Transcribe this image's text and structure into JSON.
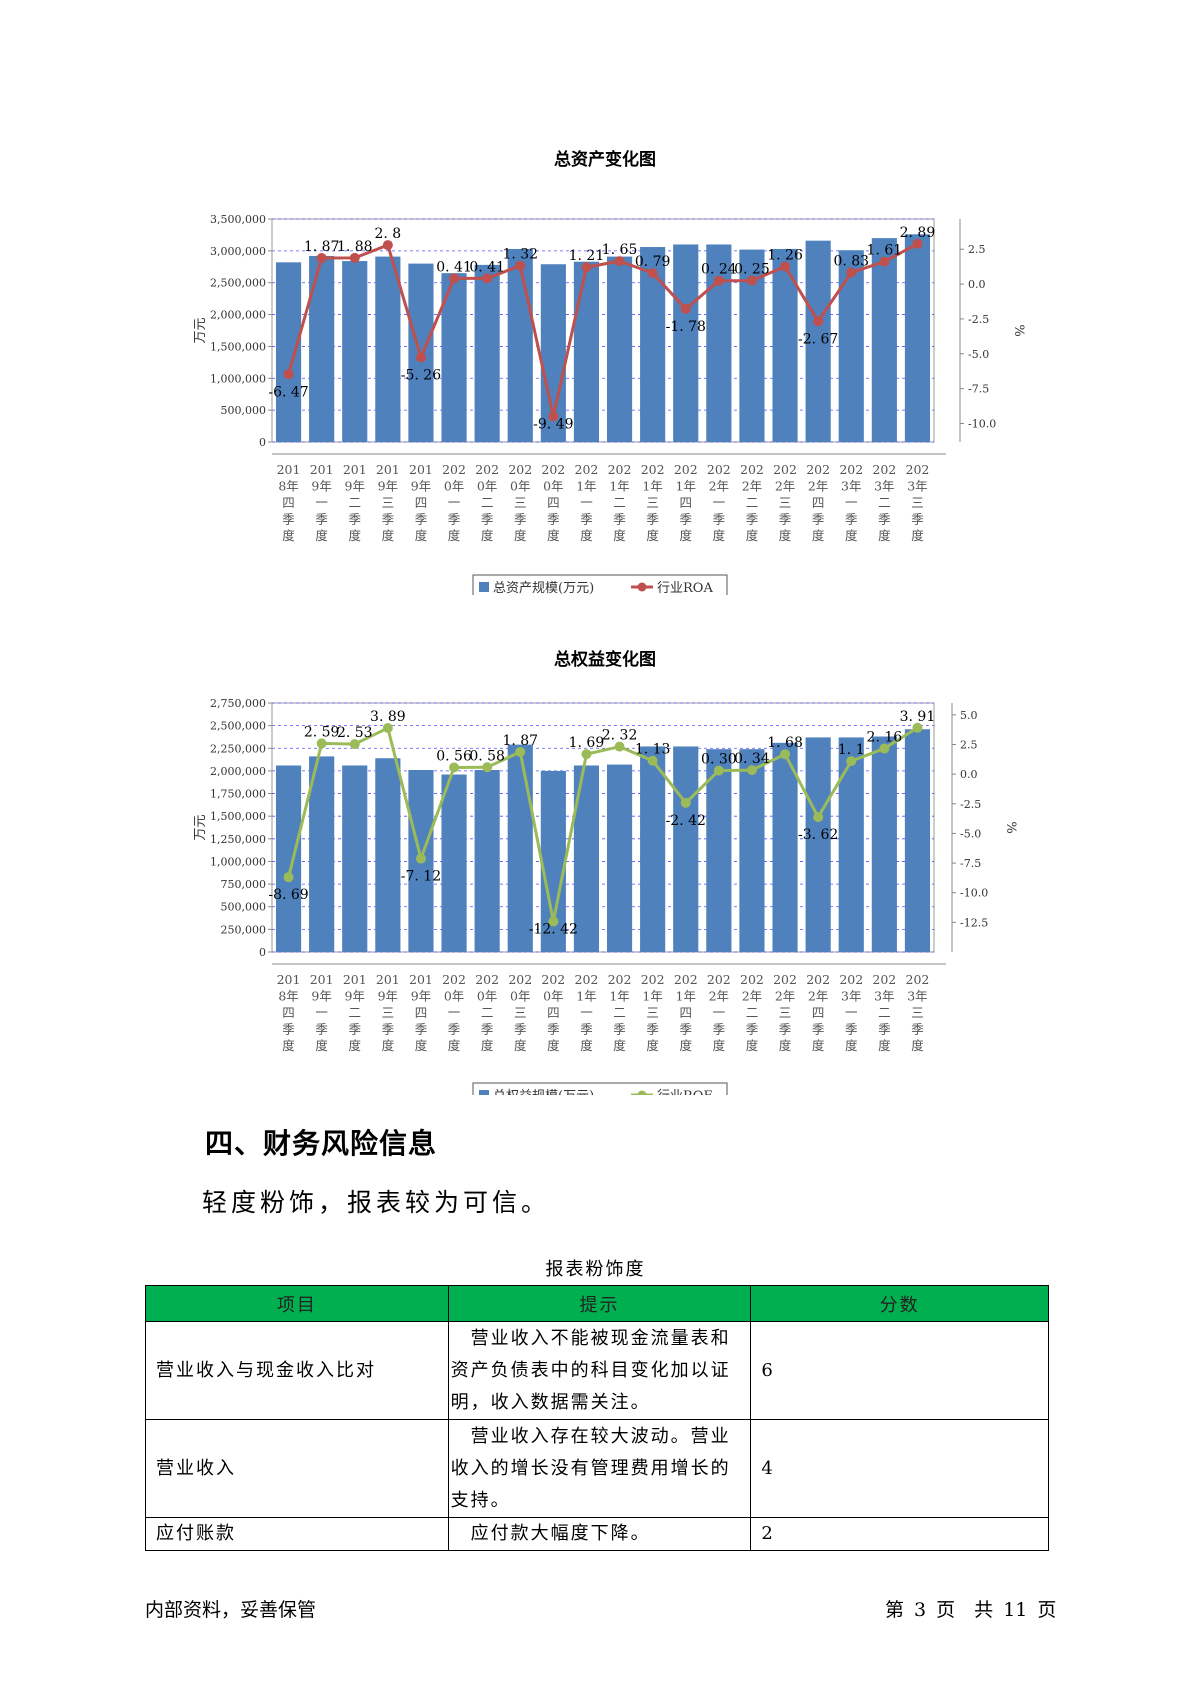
{
  "chart_data": [
    {
      "type": "bar+line",
      "title": "总资产变化图",
      "ylabel_left": "万元",
      "ylabel_right": "%",
      "categories": [
        "2018年四季度",
        "2019年一季度",
        "2019年二季度",
        "2019年三季度",
        "2019年四季度",
        "2020年一季度",
        "2020年二季度",
        "2020年三季度",
        "2020年四季度",
        "2021年一季度",
        "2021年二季度",
        "2021年三季度",
        "2021年四季度",
        "2022年一季度",
        "2022年二季度",
        "2022年三季度",
        "2022年四季度",
        "2023年一季度",
        "2023年二季度",
        "2023年三季度"
      ],
      "category_lines": [
        [
          "201",
          "8年",
          "四",
          "季",
          "度"
        ],
        [
          "201",
          "9年",
          "一",
          "季",
          "度"
        ],
        [
          "201",
          "9年",
          "二",
          "季",
          "度"
        ],
        [
          "201",
          "9年",
          "三",
          "季",
          "度"
        ],
        [
          "201",
          "9年",
          "四",
          "季",
          "度"
        ],
        [
          "202",
          "0年",
          "一",
          "季",
          "度"
        ],
        [
          "202",
          "0年",
          "二",
          "季",
          "度"
        ],
        [
          "202",
          "0年",
          "三",
          "季",
          "度"
        ],
        [
          "202",
          "0年",
          "四",
          "季",
          "度"
        ],
        [
          "202",
          "1年",
          "一",
          "季",
          "度"
        ],
        [
          "202",
          "1年",
          "二",
          "季",
          "度"
        ],
        [
          "202",
          "1年",
          "三",
          "季",
          "度"
        ],
        [
          "202",
          "1年",
          "四",
          "季",
          "度"
        ],
        [
          "202",
          "2年",
          "一",
          "季",
          "度"
        ],
        [
          "202",
          "2年",
          "二",
          "季",
          "度"
        ],
        [
          "202",
          "2年",
          "三",
          "季",
          "度"
        ],
        [
          "202",
          "2年",
          "四",
          "季",
          "度"
        ],
        [
          "202",
          "3年",
          "一",
          "季",
          "度"
        ],
        [
          "202",
          "3年",
          "二",
          "季",
          "度"
        ],
        [
          "202",
          "3年",
          "三",
          "季",
          "度"
        ]
      ],
      "series": [
        {
          "name": "总资产规模(万元)",
          "kind": "bar",
          "axis": "left",
          "color": "#4f81bd",
          "values": [
            2820000,
            2920000,
            2840000,
            2910000,
            2800000,
            2650000,
            2780000,
            3030000,
            2790000,
            2830000,
            2910000,
            3060000,
            3100000,
            3100000,
            3020000,
            3030000,
            3160000,
            3010000,
            3200000,
            3260000
          ]
        },
        {
          "name": "行业ROA",
          "kind": "line",
          "axis": "right",
          "color": "#c0504d",
          "values": [
            -6.47,
            1.87,
            1.88,
            2.8,
            -5.26,
            0.41,
            0.41,
            1.32,
            -9.49,
            1.21,
            1.65,
            0.79,
            -1.78,
            0.24,
            0.25,
            1.26,
            -2.67,
            0.83,
            1.61,
            2.89
          ],
          "labels": [
            "-6. 47",
            "1. 87",
            "1. 88",
            "2. 8",
            "-5. 26",
            "0. 41",
            "0. 41",
            "1. 32",
            "-9. 49",
            "1. 21",
            "1. 65",
            "0. 79",
            "-1. 78",
            "0. 24",
            "0. 25",
            "1. 26",
            "-2. 67",
            "0. 83",
            "1. 61",
            "2. 89"
          ]
        }
      ],
      "ylim_left": [
        0,
        3500000
      ],
      "yticks_left": [
        "0",
        "500,000",
        "1,000,000",
        "1,500,000",
        "2,000,000",
        "2,500,000",
        "3,000,000",
        "3,500,000"
      ],
      "ylim_right": [
        -11.33,
        4.67
      ],
      "yticks_right_values": [
        -10,
        -7.5,
        -5,
        -2.5,
        0,
        2.5
      ],
      "yticks_right": [
        "-10.0",
        "-7.5",
        "-5.0",
        "-2.5",
        "0.0",
        "2.5"
      ],
      "grid": true,
      "legend_position": "bottom"
    },
    {
      "type": "bar+line",
      "title": "总权益变化图",
      "ylabel_left": "万元",
      "ylabel_right": "%",
      "categories": [
        "2018年四季度",
        "2019年一季度",
        "2019年二季度",
        "2019年三季度",
        "2019年四季度",
        "2020年一季度",
        "2020年二季度",
        "2020年三季度",
        "2020年四季度",
        "2021年一季度",
        "2021年二季度",
        "2021年三季度",
        "2021年四季度",
        "2022年一季度",
        "2022年二季度",
        "2022年三季度",
        "2022年四季度",
        "2023年一季度",
        "2023年二季度",
        "2023年三季度"
      ],
      "category_lines": [
        [
          "201",
          "8年",
          "四",
          "季",
          "度"
        ],
        [
          "201",
          "9年",
          "一",
          "季",
          "度"
        ],
        [
          "201",
          "9年",
          "二",
          "季",
          "度"
        ],
        [
          "201",
          "9年",
          "三",
          "季",
          "度"
        ],
        [
          "201",
          "9年",
          "四",
          "季",
          "度"
        ],
        [
          "202",
          "0年",
          "一",
          "季",
          "度"
        ],
        [
          "202",
          "0年",
          "二",
          "季",
          "度"
        ],
        [
          "202",
          "0年",
          "三",
          "季",
          "度"
        ],
        [
          "202",
          "0年",
          "四",
          "季",
          "度"
        ],
        [
          "202",
          "1年",
          "一",
          "季",
          "度"
        ],
        [
          "202",
          "1年",
          "二",
          "季",
          "度"
        ],
        [
          "202",
          "1年",
          "三",
          "季",
          "度"
        ],
        [
          "202",
          "1年",
          "四",
          "季",
          "度"
        ],
        [
          "202",
          "2年",
          "一",
          "季",
          "度"
        ],
        [
          "202",
          "2年",
          "二",
          "季",
          "度"
        ],
        [
          "202",
          "2年",
          "三",
          "季",
          "度"
        ],
        [
          "202",
          "2年",
          "四",
          "季",
          "度"
        ],
        [
          "202",
          "3年",
          "一",
          "季",
          "度"
        ],
        [
          "202",
          "3年",
          "二",
          "季",
          "度"
        ],
        [
          "202",
          "3年",
          "三",
          "季",
          "度"
        ]
      ],
      "series": [
        {
          "name": "总权益规模(万元)",
          "kind": "bar",
          "axis": "left",
          "color": "#4f81bd",
          "values": [
            2060000,
            2160000,
            2060000,
            2140000,
            2010000,
            1960000,
            2010000,
            2290000,
            2000000,
            2060000,
            2070000,
            2270000,
            2270000,
            2240000,
            2240000,
            2310000,
            2370000,
            2370000,
            2380000,
            2460000
          ]
        },
        {
          "name": "行业ROE",
          "kind": "line",
          "axis": "right",
          "color": "#9bbb59",
          "values": [
            -8.69,
            2.59,
            2.53,
            3.89,
            -7.12,
            0.56,
            0.58,
            1.87,
            -12.42,
            1.69,
            2.32,
            1.13,
            -2.42,
            0.3,
            0.34,
            1.68,
            -3.62,
            1.1,
            2.16,
            3.91
          ],
          "labels": [
            "-8. 69",
            "2. 59",
            "2. 53",
            "3. 89",
            "-7. 12",
            "0. 56",
            "0. 58",
            "1. 87",
            "-12. 42",
            "1. 69",
            "2. 32",
            "1. 13",
            "-2. 42",
            "0. 30",
            "0. 34",
            "1. 68",
            "-3. 62",
            "1. 1",
            "2. 16",
            "3. 91"
          ]
        }
      ],
      "ylim_left": [
        0,
        2750000
      ],
      "yticks_left": [
        "0",
        "250,000",
        "500,000",
        "750,000",
        "1,000,000",
        "1,250,000",
        "1,500,000",
        "1,750,000",
        "2,000,000",
        "2,250,000",
        "2,500,000",
        "2,750,000"
      ],
      "ylim_right": [
        -15.0,
        6.0
      ],
      "yticks_right_values": [
        -12.5,
        -10,
        -7.5,
        -5,
        -2.5,
        0,
        2.5,
        5
      ],
      "yticks_right": [
        "-12.5",
        "-10.0",
        "-7.5",
        "-5.0",
        "-2.5",
        "0.0",
        "2.5",
        "5.0"
      ],
      "grid": true,
      "legend_position": "bottom"
    }
  ],
  "section": {
    "heading": "四、财务风险信息",
    "summary": "轻度粉饰，报表较为可信。"
  },
  "table": {
    "caption": "报表粉饰度",
    "header_color": "#00b050",
    "headers": [
      "项目",
      "提示",
      "分数"
    ],
    "rows": [
      {
        "item": "营业收入与现金收入比对",
        "hint": "　营业收入不能被现金流量表和资产负债表中的科目变化加以证明，收入数据需关注。",
        "score": "6"
      },
      {
        "item": "营业收入",
        "hint": "　营业收入存在较大波动。营业收入的增长没有管理费用增长的支持。",
        "score": "4"
      },
      {
        "item": "应付账款",
        "hint": "　应付款大幅度下降。",
        "score": "2"
      }
    ]
  },
  "footer": {
    "left": "内部资料，妥善保管",
    "right": "第 3 页　共 11 页"
  }
}
